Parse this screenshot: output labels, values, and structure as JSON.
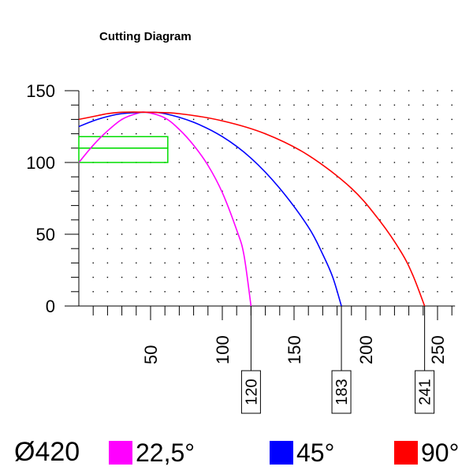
{
  "chart_data": {
    "type": "line",
    "title": "Cutting Diagram",
    "xlim": [
      0,
      260
    ],
    "ylim": [
      0,
      150
    ],
    "x_ticks": [
      50,
      100,
      150,
      200,
      250
    ],
    "y_ticks": [
      0,
      50,
      100,
      150
    ],
    "x_minor_step": 10,
    "y_minor_step": 10,
    "grid": "dotted",
    "series": [
      {
        "name": "22,5°",
        "color": "#ff00ff",
        "x": [
          0,
          10,
          20,
          30,
          40,
          47,
          60,
          70,
          80,
          90,
          100,
          110,
          115,
          120
        ],
        "y": [
          100,
          112,
          122,
          130,
          134,
          135,
          131,
          123,
          112,
          98,
          79,
          53,
          36,
          0
        ]
      },
      {
        "name": "45°",
        "color": "#0000ff",
        "x": [
          0,
          10,
          20,
          30,
          47,
          60,
          80,
          100,
          120,
          140,
          160,
          170,
          177,
          183
        ],
        "y": [
          125,
          129,
          132,
          134,
          135,
          134,
          128,
          118,
          103,
          82,
          55,
          36,
          20,
          0
        ]
      },
      {
        "name": "90°",
        "color": "#ff0000",
        "x": [
          0,
          10,
          20,
          30,
          47,
          70,
          100,
          130,
          160,
          190,
          210,
          225,
          233,
          241
        ],
        "y": [
          130,
          132,
          134,
          135,
          135,
          134,
          129,
          120,
          105,
          82,
          59,
          37,
          21,
          0
        ]
      }
    ],
    "rectangles": {
      "color": "#00dd00",
      "boxes": [
        {
          "x0": 0,
          "x1": 62,
          "y0": 100,
          "y1": 110
        },
        {
          "x0": 0,
          "x1": 62,
          "y0": 110,
          "y1": 118
        }
      ]
    },
    "endpoint_labels": [
      {
        "x": 120,
        "label": "120"
      },
      {
        "x": 183,
        "label": "183"
      },
      {
        "x": 241,
        "label": "241"
      }
    ]
  },
  "diameter_label": "Ø420",
  "legend": [
    {
      "label": "22,5°",
      "color": "#ff00ff"
    },
    {
      "label": "45°",
      "color": "#0000ff"
    },
    {
      "label": "90°",
      "color": "#ff0000"
    }
  ]
}
